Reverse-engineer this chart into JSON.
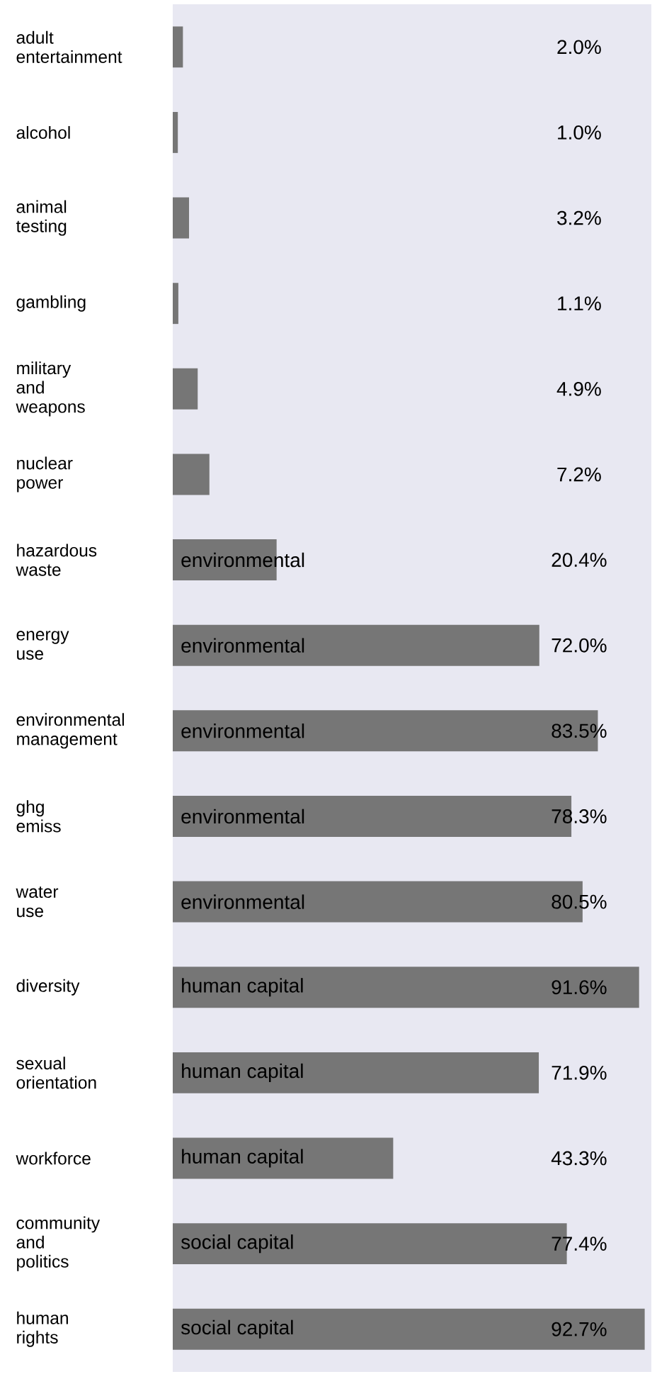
{
  "chart_data": {
    "type": "bar",
    "orientation": "horizontal",
    "categories": [
      "adult entertainment",
      "alcohol",
      "animal testing",
      "gambling",
      "military and weapons",
      "nuclear power",
      "hazardous waste",
      "energy use",
      "environmental management",
      "ghg emiss",
      "water use",
      "diversity",
      "sexual orientation",
      "workforce",
      "community and politics",
      "human rights"
    ],
    "values": [
      2.0,
      1.0,
      3.2,
      1.1,
      4.9,
      7.2,
      20.4,
      72.0,
      83.5,
      78.3,
      80.5,
      91.6,
      71.9,
      43.3,
      77.4,
      92.7
    ],
    "value_labels": [
      "2.0%",
      "1.0%",
      "3.2%",
      "1.1%",
      "4.9%",
      "7.2%",
      "20.4%",
      "72.0%",
      "83.5%",
      "78.3%",
      "80.5%",
      "91.6%",
      "71.9%",
      "43.3%",
      "77.4%",
      "92.7%"
    ],
    "color": "#767676",
    "xlim": [
      0,
      94
    ],
    "tick_labels": "y",
    "annotations": [
      "environmental",
      "environmental",
      "environmental",
      "environmental",
      "environmental",
      "human capital",
      "human capital",
      "human capital",
      "social capital",
      "social capital"
    ]
  }
}
